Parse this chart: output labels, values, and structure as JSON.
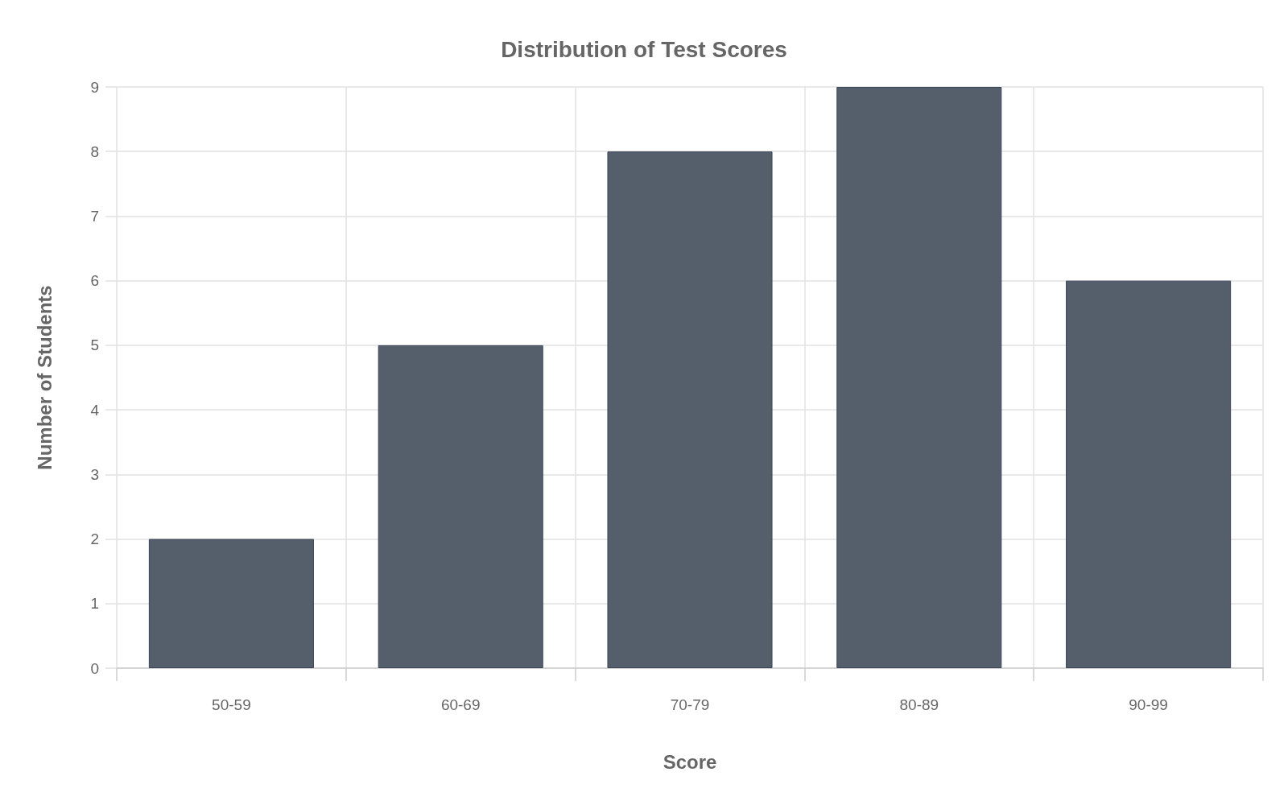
{
  "chart_data": {
    "type": "bar",
    "title": "Distribution of Test Scores",
    "xlabel": "Score",
    "ylabel": "Number of Students",
    "categories": [
      "50-59",
      "60-69",
      "70-79",
      "80-89",
      "90-99"
    ],
    "values": [
      2,
      5,
      8,
      9,
      6
    ],
    "color": "#555f6b",
    "ylim": [
      0,
      9
    ],
    "yticks": [
      0,
      1,
      2,
      3,
      4,
      5,
      6,
      7,
      8,
      9
    ],
    "grid": true
  }
}
